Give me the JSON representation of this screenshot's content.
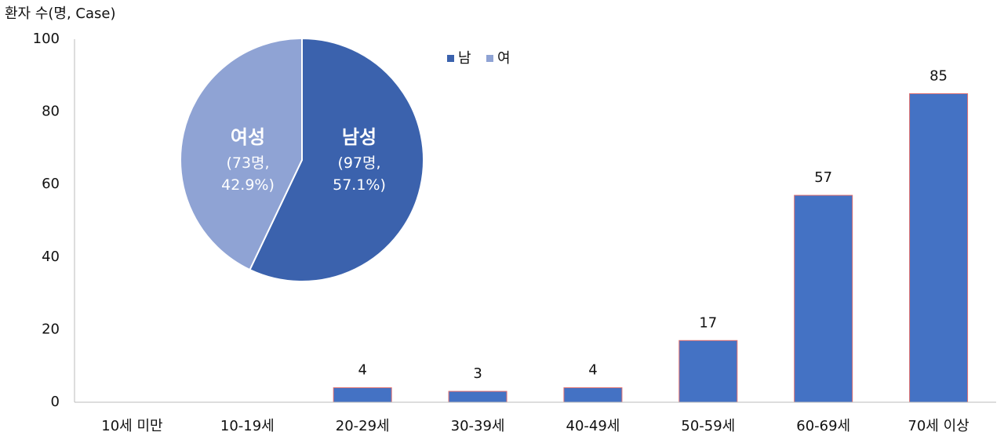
{
  "chart_data": [
    {
      "type": "bar",
      "y_label": "환자 수(명, Case)",
      "categories": [
        "10세 미만",
        "10-19세",
        "20-29세",
        "30-39세",
        "40-49세",
        "50-59세",
        "60-69세",
        "70세 이상"
      ],
      "values": [
        0,
        0,
        4,
        3,
        4,
        17,
        57,
        85
      ],
      "color": "#4472c4",
      "edge_color": "#e07070",
      "ylim": [
        0,
        100
      ],
      "yticks": [
        0,
        20,
        40,
        60,
        80,
        100
      ]
    },
    {
      "type": "pie",
      "categories": [
        "남성",
        "여성"
      ],
      "legend": [
        "남",
        "여"
      ],
      "values": [
        97,
        73
      ],
      "value_labels": [
        "(97명, 57.1%)",
        "(73명, 42.9%)"
      ],
      "colors": [
        "#3b62ad",
        "#8fa3d4"
      ]
    }
  ]
}
